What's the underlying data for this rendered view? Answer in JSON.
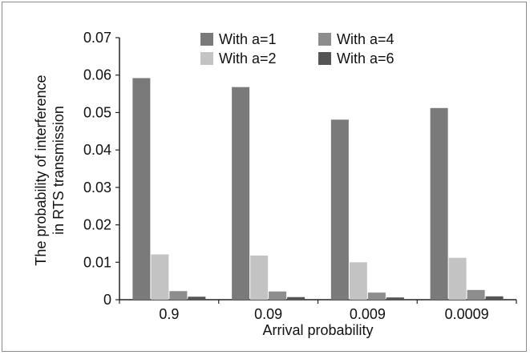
{
  "chart_data": {
    "type": "bar",
    "title": "",
    "xlabel": "Arrival probability",
    "ylabel_lines": [
      "The probability of interference",
      "in RTS transmission"
    ],
    "categories": [
      "0.9",
      "0.09",
      "0.009",
      "0.0009"
    ],
    "ylim": [
      0,
      0.07
    ],
    "yticks": [
      "0",
      "0.01",
      "0.02",
      "0.03",
      "0.04",
      "0.05",
      "0.06",
      "0.07"
    ],
    "legend_position": "top-right",
    "grid": false,
    "series": [
      {
        "name": "With a=1",
        "color": "#7a7a7a",
        "values": [
          0.0592,
          0.0568,
          0.0481,
          0.0512
        ]
      },
      {
        "name": "With a=2",
        "color": "#c3c3c3",
        "values": [
          0.0121,
          0.0118,
          0.01,
          0.0112
        ]
      },
      {
        "name": "With a=4",
        "color": "#8d8d8d",
        "values": [
          0.0023,
          0.0022,
          0.0019,
          0.0026
        ]
      },
      {
        "name": "With a=6",
        "color": "#555555",
        "values": [
          0.0008,
          0.0007,
          0.0006,
          0.0009
        ]
      }
    ]
  }
}
